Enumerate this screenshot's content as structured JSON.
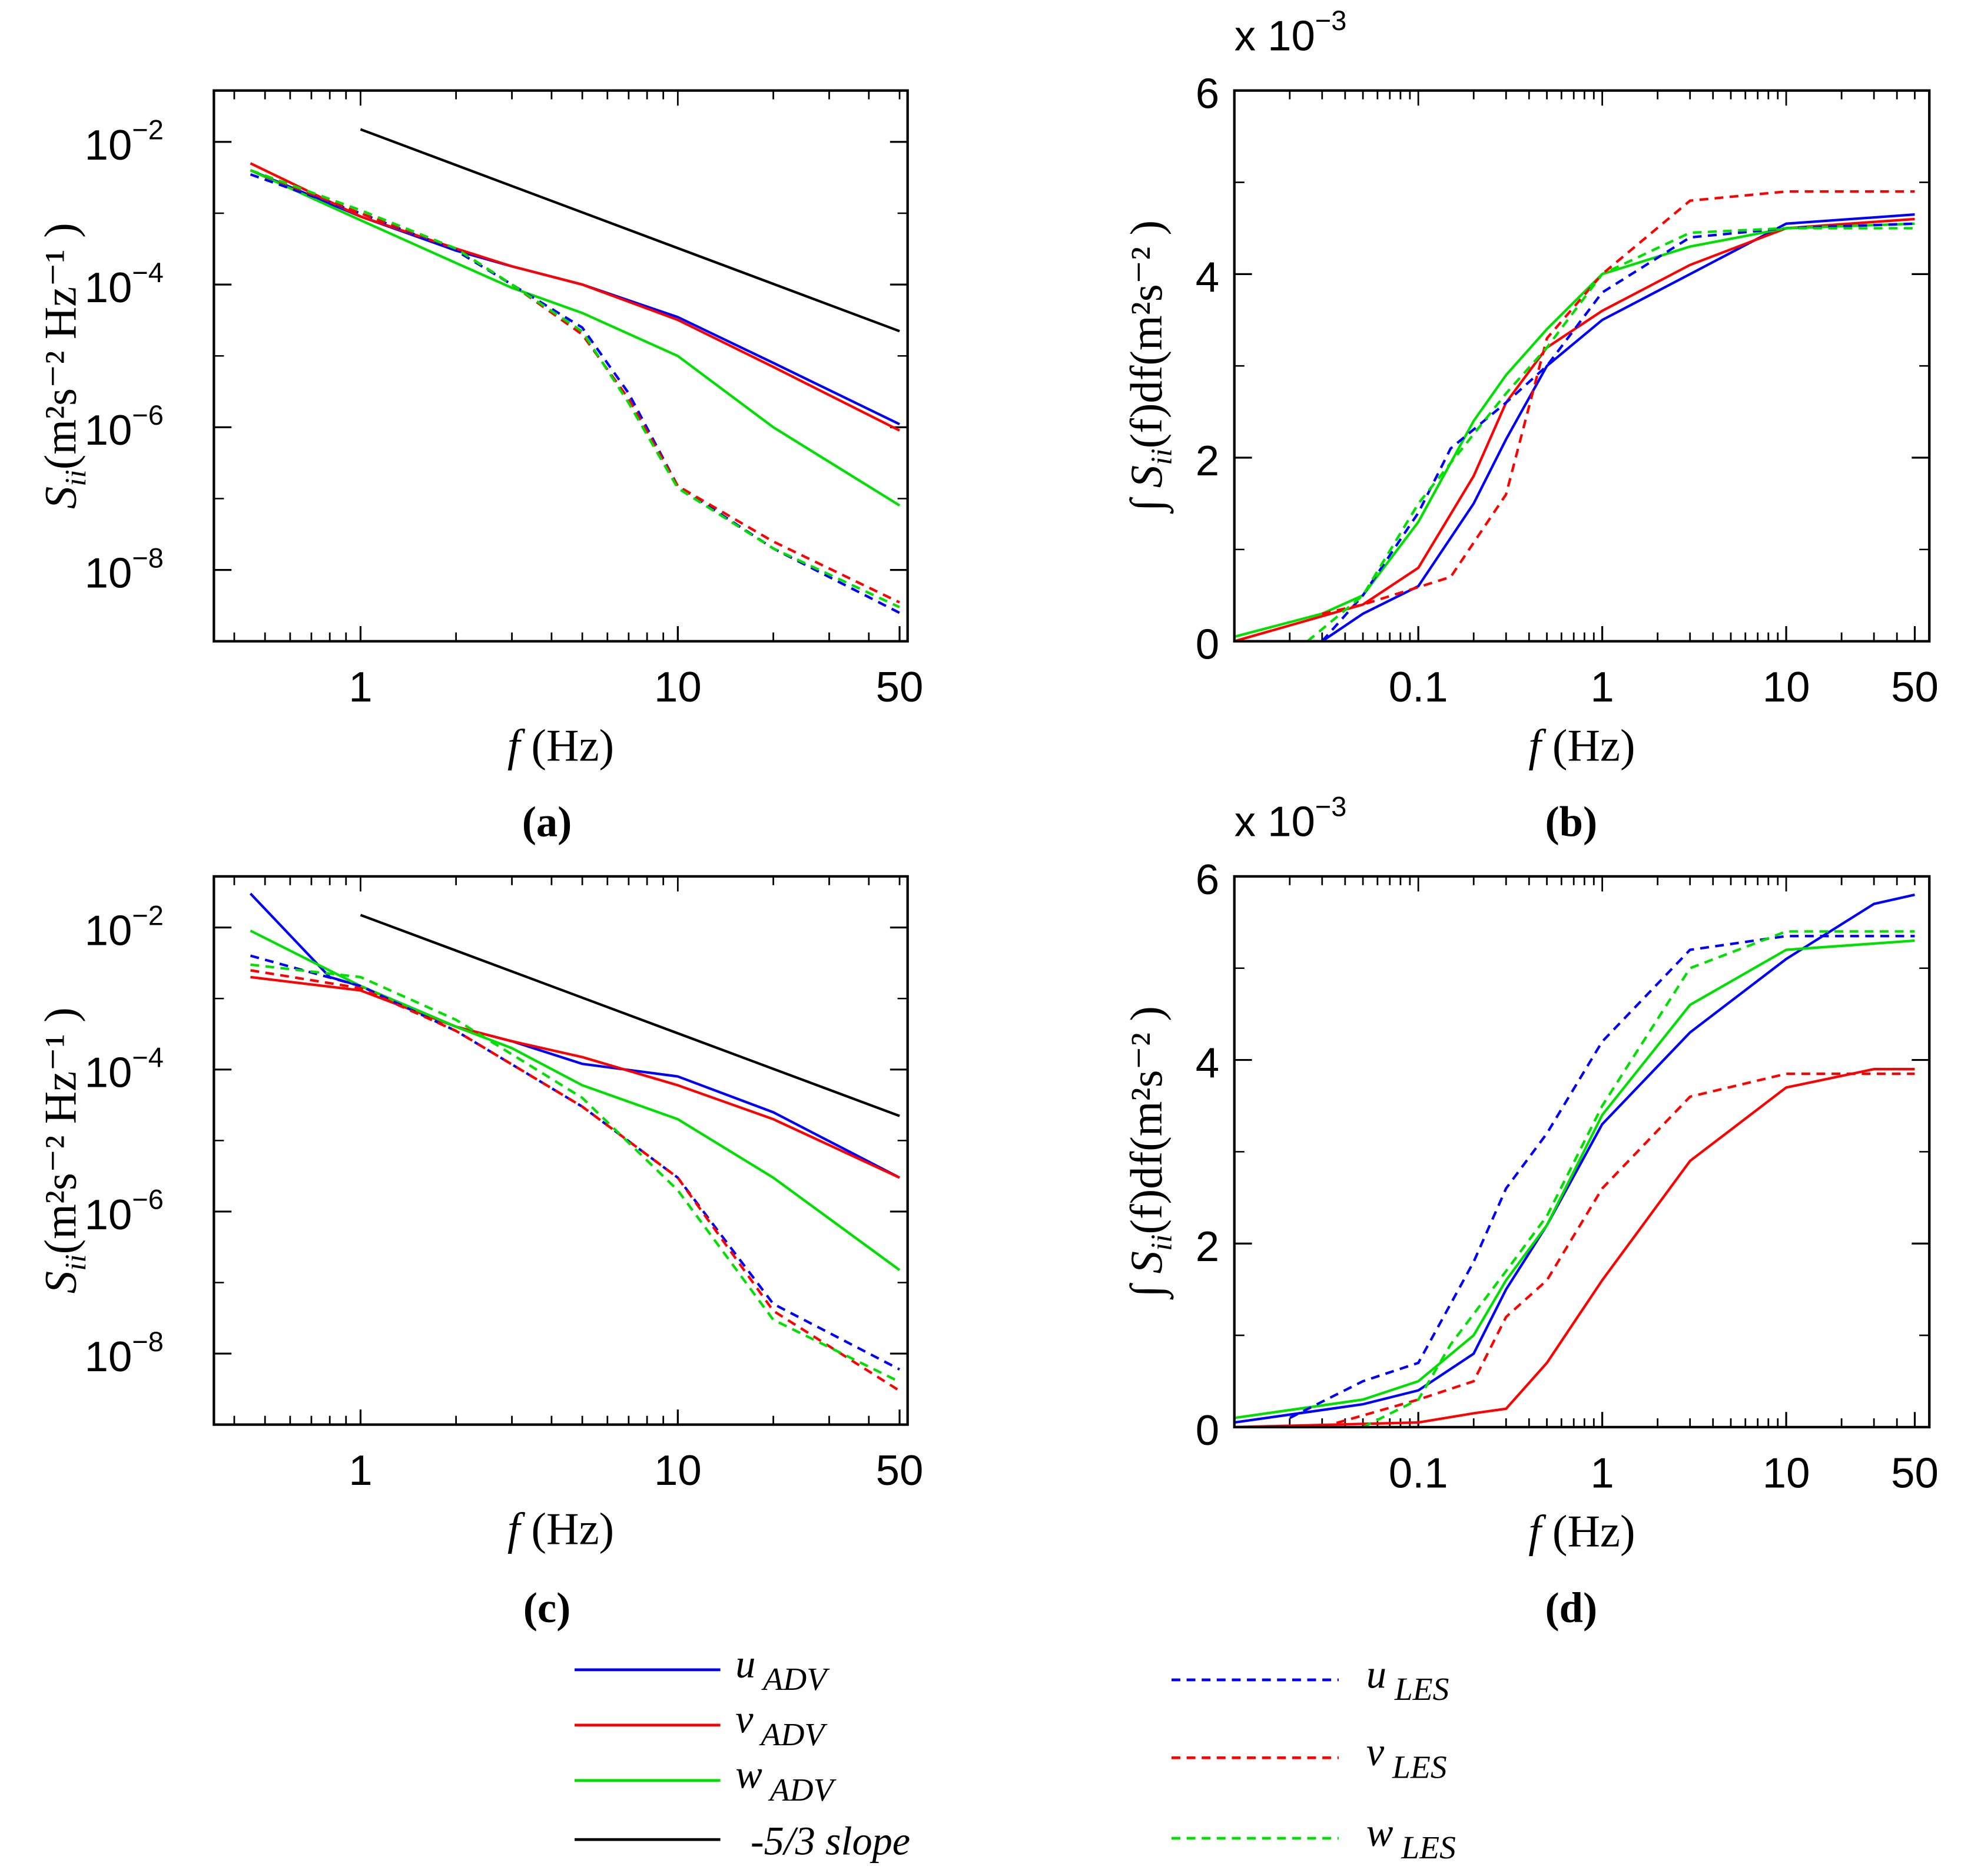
{
  "colors": {
    "u": "#0000ff",
    "v": "#ff0000",
    "w": "#00e000",
    "slope": "#000000"
  },
  "legend": {
    "items": [
      {
        "key": "u_ADV",
        "sym": "u",
        "sub": "ADV",
        "color": "#0000ff",
        "dash": false
      },
      {
        "key": "v_ADV",
        "sym": "v",
        "sub": "ADV",
        "color": "#ff0000",
        "dash": false
      },
      {
        "key": "w_ADV",
        "sym": "w",
        "sub": "ADV",
        "color": "#00e000",
        "dash": false
      },
      {
        "key": "slope",
        "sym": "",
        "sub": "",
        "text": "-5/3 slope",
        "color": "#000000",
        "dash": false
      },
      {
        "key": "u_LES",
        "sym": "u",
        "sub": "LES",
        "color": "#0000ff",
        "dash": true
      },
      {
        "key": "v_LES",
        "sym": "v",
        "sub": "LES",
        "color": "#ff0000",
        "dash": true
      },
      {
        "key": "w_LES",
        "sym": "w",
        "sub": "LES",
        "color": "#00e000",
        "dash": true
      }
    ]
  },
  "chart_data": [
    {
      "id": "a",
      "caption": "(a)",
      "type": "line",
      "xscale": "log",
      "yscale": "log",
      "xlim": [
        0.345,
        53
      ],
      "ylim_log10": [
        -9,
        -1.28
      ],
      "xticks": [
        {
          "v": 1,
          "label": "1"
        },
        {
          "v": 10,
          "label": "10"
        },
        {
          "v": 50,
          "label": "50"
        }
      ],
      "yticks": [
        {
          "v": -2,
          "label": "10",
          "exp": "−2"
        },
        {
          "v": -4,
          "label": "10",
          "exp": "−4"
        },
        {
          "v": -6,
          "label": "10",
          "exp": "−6"
        },
        {
          "v": -8,
          "label": "10",
          "exp": "−8"
        }
      ],
      "xlabel": {
        "sym": "f",
        "unit": " (Hz)"
      },
      "ylabel": {
        "sym": "S",
        "sub": "ii",
        "unit": "(m²s⁻² Hz⁻¹ )"
      },
      "slope_line": {
        "x": [
          1,
          50
        ],
        "y": [
          0.015,
          2.22e-05
        ]
      },
      "series": [
        {
          "name": "u_ADV",
          "x": [
            0.45,
            1,
            2,
            3,
            5,
            10,
            20,
            50
          ],
          "y": [
            0.004,
            0.0009,
            0.0003,
            0.00018,
            0.0001,
            3.5e-05,
            8e-06,
            1.1e-06
          ]
        },
        {
          "name": "v_ADV",
          "x": [
            0.45,
            1,
            2,
            3,
            5,
            10,
            20,
            50
          ],
          "y": [
            0.005,
            0.0009,
            0.00032,
            0.00018,
            0.0001,
            3.2e-05,
            7e-06,
            9e-07
          ]
        },
        {
          "name": "w_ADV",
          "x": [
            0.45,
            1,
            2,
            3,
            5,
            10,
            20,
            50
          ],
          "y": [
            0.004,
            0.0008,
            0.0002,
            9e-05,
            4e-05,
            1e-05,
            1e-06,
            8e-08
          ]
        },
        {
          "name": "u_LES",
          "x": [
            0.45,
            1,
            2,
            3,
            5,
            7,
            10,
            20,
            50
          ],
          "y": [
            0.0035,
            0.001,
            0.0003,
            0.0001,
            2.5e-05,
            3e-06,
            1.5e-07,
            2e-08,
            2.5e-09
          ]
        },
        {
          "name": "v_LES",
          "x": [
            0.45,
            1,
            2,
            3,
            5,
            7,
            10,
            20,
            50
          ],
          "y": [
            0.004,
            0.001,
            0.00032,
            0.0001,
            2e-05,
            2.5e-06,
            1.5e-07,
            2.5e-08,
            3.5e-09
          ]
        },
        {
          "name": "w_LES",
          "x": [
            0.45,
            1,
            2,
            3,
            5,
            7,
            10,
            20,
            50
          ],
          "y": [
            0.004,
            0.0011,
            0.00032,
            0.0001,
            2.2e-05,
            2.2e-06,
            1.4e-07,
            2e-08,
            3e-09
          ]
        }
      ]
    },
    {
      "id": "b",
      "caption": "(b)",
      "type": "line",
      "xscale": "log",
      "yscale": "linear",
      "xlim": [
        0.01,
        60
      ],
      "ylim": [
        0,
        6
      ],
      "multiplier": {
        "text": "x 10",
        "exp": "−3"
      },
      "xticks": [
        {
          "v": 0.1,
          "label": "0.1"
        },
        {
          "v": 1,
          "label": "1"
        },
        {
          "v": 10,
          "label": "10"
        },
        {
          "v": 50,
          "label": "50"
        }
      ],
      "yticks": [
        {
          "v": 0,
          "label": "0"
        },
        {
          "v": 2,
          "label": "2"
        },
        {
          "v": 4,
          "label": "4"
        },
        {
          "v": 6,
          "label": "6"
        }
      ],
      "xlabel": {
        "sym": "f",
        "unit": " (Hz)"
      },
      "ylabel": {
        "int": "∫ ",
        "sym": "S",
        "sub": "ii",
        "mid": "(f)df",
        "unit": "(m²s⁻² )"
      },
      "series": [
        {
          "name": "u_ADV",
          "x": [
            0.01,
            0.03,
            0.05,
            0.1,
            0.2,
            0.3,
            0.5,
            1,
            3,
            10,
            50
          ],
          "y": [
            0,
            0,
            0.3,
            0.6,
            1.5,
            2.2,
            3.0,
            3.5,
            4.0,
            4.55,
            4.65
          ]
        },
        {
          "name": "v_ADV",
          "x": [
            0.01,
            0.05,
            0.1,
            0.2,
            0.3,
            0.5,
            1,
            3,
            10,
            50
          ],
          "y": [
            0,
            0.4,
            0.8,
            1.8,
            2.6,
            3.2,
            3.6,
            4.1,
            4.5,
            4.6
          ]
        },
        {
          "name": "w_ADV",
          "x": [
            0.01,
            0.03,
            0.05,
            0.1,
            0.2,
            0.3,
            0.5,
            1,
            3,
            10,
            50
          ],
          "y": [
            0.05,
            0.3,
            0.5,
            1.3,
            2.4,
            2.9,
            3.4,
            4.0,
            4.3,
            4.5,
            4.55
          ]
        },
        {
          "name": "u_LES",
          "x": [
            0.03,
            0.05,
            0.1,
            0.15,
            0.3,
            0.5,
            1,
            3,
            10,
            50
          ],
          "y": [
            0,
            0.5,
            1.4,
            2.1,
            2.6,
            3.0,
            3.8,
            4.4,
            4.5,
            4.55
          ]
        },
        {
          "name": "v_LES",
          "x": [
            0.03,
            0.05,
            0.15,
            0.3,
            0.5,
            1,
            3,
            10,
            50
          ],
          "y": [
            0.3,
            0.4,
            0.7,
            1.6,
            3.3,
            4.0,
            4.8,
            4.9,
            4.9
          ]
        },
        {
          "name": "w_LES",
          "x": [
            0.025,
            0.05,
            0.1,
            0.3,
            0.5,
            1,
            3,
            10,
            50
          ],
          "y": [
            0,
            0.5,
            1.5,
            2.7,
            3.2,
            4.0,
            4.45,
            4.5,
            4.5
          ]
        }
      ]
    },
    {
      "id": "c",
      "caption": "(c)",
      "type": "line",
      "xscale": "log",
      "yscale": "log",
      "xlim": [
        0.345,
        53
      ],
      "ylim_log10": [
        -9,
        -1.28
      ],
      "xticks": [
        {
          "v": 1,
          "label": "1"
        },
        {
          "v": 10,
          "label": "10"
        },
        {
          "v": 50,
          "label": "50"
        }
      ],
      "yticks": [
        {
          "v": -2,
          "label": "10",
          "exp": "−2"
        },
        {
          "v": -4,
          "label": "10",
          "exp": "−4"
        },
        {
          "v": -6,
          "label": "10",
          "exp": "−6"
        },
        {
          "v": -8,
          "label": "10",
          "exp": "−8"
        }
      ],
      "xlabel": {
        "sym": "f",
        "unit": " (Hz)"
      },
      "ylabel": {
        "sym": "S",
        "sub": "ii",
        "unit": "(m²s⁻² Hz⁻¹ )"
      },
      "slope_line": {
        "x": [
          1,
          50
        ],
        "y": [
          0.015,
          2.22e-05
        ]
      },
      "series": [
        {
          "name": "u_ADV",
          "x": [
            0.45,
            0.8,
            1,
            2,
            3,
            5,
            10,
            20,
            50
          ],
          "y": [
            0.03,
            0.002,
            0.0015,
            0.0004,
            0.00025,
            0.00012,
            8e-05,
            2.5e-05,
            3e-06
          ]
        },
        {
          "name": "v_ADV",
          "x": [
            0.45,
            1,
            2,
            3,
            5,
            10,
            20,
            50
          ],
          "y": [
            0.002,
            0.0013,
            0.0004,
            0.00025,
            0.00015,
            6e-05,
            2e-05,
            3e-06
          ]
        },
        {
          "name": "w_ADV",
          "x": [
            0.45,
            1,
            2,
            3,
            5,
            10,
            20,
            50
          ],
          "y": [
            0.009,
            0.0015,
            0.0004,
            0.0002,
            6e-05,
            2e-05,
            3e-06,
            1.5e-07
          ]
        },
        {
          "name": "u_LES",
          "x": [
            0.45,
            1,
            2,
            5,
            10,
            20,
            50
          ],
          "y": [
            0.004,
            0.0015,
            0.00035,
            3e-05,
            3e-06,
            5e-08,
            6e-09
          ]
        },
        {
          "name": "v_LES",
          "x": [
            0.45,
            1,
            2,
            5,
            10,
            20,
            50
          ],
          "y": [
            0.0025,
            0.0014,
            0.00035,
            3e-05,
            3e-06,
            4e-08,
            3e-09
          ]
        },
        {
          "name": "w_LES",
          "x": [
            0.45,
            1,
            2,
            5,
            10,
            20,
            50
          ],
          "y": [
            0.003,
            0.002,
            0.0005,
            4e-05,
            2e-06,
            3e-08,
            4e-09
          ]
        }
      ]
    },
    {
      "id": "d",
      "caption": "(d)",
      "type": "line",
      "xscale": "log",
      "yscale": "linear",
      "xlim": [
        0.01,
        60
      ],
      "ylim": [
        0,
        6
      ],
      "multiplier": {
        "text": "x 10",
        "exp": "−3"
      },
      "xticks": [
        {
          "v": 0.1,
          "label": "0.1"
        },
        {
          "v": 1,
          "label": "1"
        },
        {
          "v": 10,
          "label": "10"
        },
        {
          "v": 50,
          "label": "50"
        }
      ],
      "yticks": [
        {
          "v": 0,
          "label": "0"
        },
        {
          "v": 2,
          "label": "2"
        },
        {
          "v": 4,
          "label": "4"
        },
        {
          "v": 6,
          "label": "6"
        }
      ],
      "xlabel": {
        "sym": "f",
        "unit": " (Hz)"
      },
      "ylabel": {
        "int": "∫ ",
        "sym": "S",
        "sub": "ii",
        "mid": "(f)df",
        "unit": "(m²s⁻² )"
      },
      "series": [
        {
          "name": "u_ADV",
          "x": [
            0.01,
            0.05,
            0.1,
            0.2,
            0.3,
            0.5,
            1,
            3,
            10,
            30,
            50
          ],
          "y": [
            0.05,
            0.25,
            0.4,
            0.8,
            1.5,
            2.2,
            3.3,
            4.3,
            5.1,
            5.7,
            5.8
          ]
        },
        {
          "name": "v_ADV",
          "x": [
            0.01,
            0.1,
            0.2,
            0.3,
            0.5,
            1,
            3,
            10,
            30,
            50
          ],
          "y": [
            0,
            0.05,
            0.15,
            0.2,
            0.7,
            1.6,
            2.9,
            3.7,
            3.9,
            3.9
          ]
        },
        {
          "name": "w_ADV",
          "x": [
            0.01,
            0.05,
            0.1,
            0.2,
            0.3,
            0.5,
            1,
            3,
            10,
            50
          ],
          "y": [
            0.1,
            0.3,
            0.5,
            1.0,
            1.6,
            2.2,
            3.4,
            4.6,
            5.2,
            5.3
          ]
        },
        {
          "name": "u_LES",
          "x": [
            0.02,
            0.05,
            0.1,
            0.2,
            0.3,
            0.5,
            1,
            3,
            10,
            50
          ],
          "y": [
            0.1,
            0.5,
            0.7,
            1.8,
            2.6,
            3.2,
            4.2,
            5.2,
            5.35,
            5.35
          ]
        },
        {
          "name": "v_LES",
          "x": [
            0.03,
            0.1,
            0.2,
            0.3,
            0.5,
            1,
            3,
            10,
            50
          ],
          "y": [
            0,
            0.3,
            0.5,
            1.2,
            1.6,
            2.6,
            3.6,
            3.85,
            3.85
          ]
        },
        {
          "name": "w_LES",
          "x": [
            0.05,
            0.1,
            0.15,
            0.3,
            0.5,
            1,
            3,
            10,
            50
          ],
          "y": [
            0,
            0.3,
            0.9,
            1.7,
            2.3,
            3.5,
            5.0,
            5.4,
            5.4
          ]
        }
      ]
    }
  ]
}
